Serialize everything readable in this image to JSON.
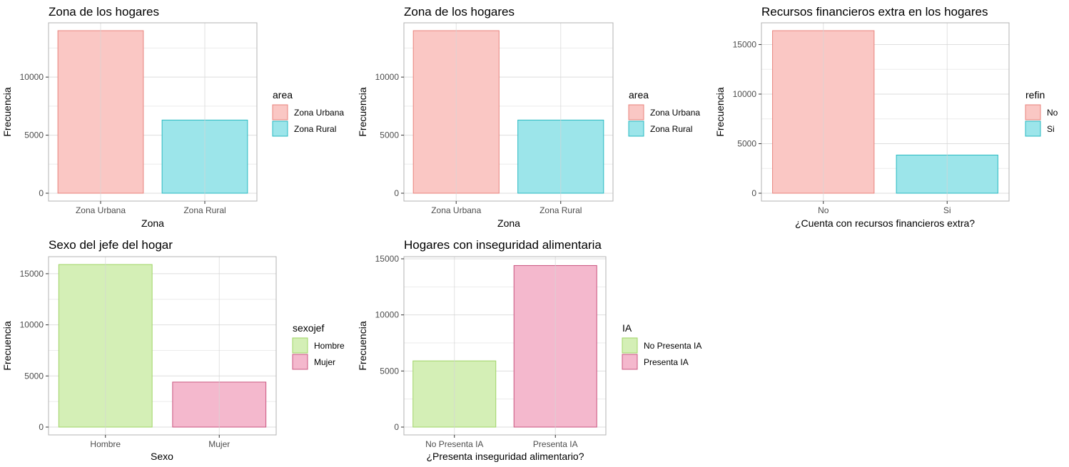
{
  "chart_data": [
    {
      "type": "bar",
      "title": "Zona de los hogares",
      "xlabel": "Zona",
      "ylabel": "Frecuencia",
      "categories": [
        "Zona Urbana",
        "Zona Rural"
      ],
      "values": [
        14000,
        6300
      ],
      "ylim": [
        0,
        14000
      ],
      "yticks": [
        0,
        5000,
        10000
      ],
      "bar_fills": [
        "#fac7c4",
        "#9ce5ea"
      ],
      "bar_strokes": [
        "#e8837c",
        "#28b9c2"
      ],
      "legend": {
        "title": "area",
        "labels": [
          "Zona Urbana",
          "Zona Rural"
        ],
        "position": "right"
      },
      "grid": true
    },
    {
      "type": "bar",
      "title": "Zona de los hogares",
      "xlabel": "Zona",
      "ylabel": "Frecuencia",
      "categories": [
        "Zona Urbana",
        "Zona Rural"
      ],
      "values": [
        14000,
        6300
      ],
      "ylim": [
        0,
        14000
      ],
      "yticks": [
        0,
        5000,
        10000
      ],
      "bar_fills": [
        "#fac7c4",
        "#9ce5ea"
      ],
      "bar_strokes": [
        "#e8837c",
        "#28b9c2"
      ],
      "legend": {
        "title": "area",
        "labels": [
          "Zona Urbana",
          "Zona Rural"
        ],
        "position": "right"
      },
      "grid": true
    },
    {
      "type": "bar",
      "title": "Recursos financieros extra en los hogares",
      "xlabel": "¿Cuenta con recursos financieros extra?",
      "ylabel": "Frecuencia",
      "categories": [
        "No",
        "Si"
      ],
      "values": [
        16400,
        3850
      ],
      "ylim": [
        0,
        16400
      ],
      "yticks": [
        0,
        5000,
        10000,
        15000
      ],
      "bar_fills": [
        "#fac7c4",
        "#9ce5ea"
      ],
      "bar_strokes": [
        "#e8837c",
        "#28b9c2"
      ],
      "legend": {
        "title": "refin",
        "labels": [
          "No",
          "Si"
        ],
        "position": "right"
      },
      "grid": true
    },
    {
      "type": "bar",
      "title": "Sexo del jefe del hogar",
      "xlabel": "Sexo",
      "ylabel": "Frecuencia",
      "categories": [
        "Hombre",
        "Mujer"
      ],
      "values": [
        15900,
        4400
      ],
      "ylim": [
        0,
        15900
      ],
      "yticks": [
        0,
        5000,
        10000,
        15000
      ],
      "bar_fills": [
        "#d4efb6",
        "#f4b8cd"
      ],
      "bar_strokes": [
        "#9fd466",
        "#c9557f"
      ],
      "legend": {
        "title": "sexojef",
        "labels": [
          "Hombre",
          "Mujer"
        ],
        "position": "right"
      },
      "grid": true
    },
    {
      "type": "bar",
      "title": "Hogares con inseguridad alimentaria",
      "xlabel": "¿Presenta inseguridad alimentario?",
      "ylabel": "Frecuencia",
      "categories": [
        "No Presenta IA",
        "Presenta IA"
      ],
      "values": [
        5900,
        14400
      ],
      "ylim": [
        0,
        15000
      ],
      "yticks": [
        0,
        5000,
        10000,
        15000
      ],
      "bar_fills": [
        "#d4efb6",
        "#f4b8cd"
      ],
      "bar_strokes": [
        "#9fd466",
        "#c9557f"
      ],
      "legend": {
        "title": "IA",
        "labels": [
          "No Presenta IA",
          "Presenta IA"
        ],
        "position": "right"
      },
      "grid": true
    }
  ]
}
